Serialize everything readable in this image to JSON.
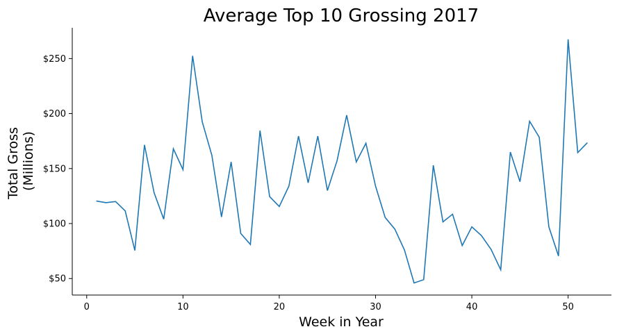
{
  "chart_data": {
    "type": "line",
    "title": "Average Top 10 Grossing 2017",
    "xlabel": "Week in Year",
    "ylabel_lines": [
      "Total Gross",
      "(Millions)"
    ],
    "xlim": [
      -1.5,
      54.5
    ],
    "ylim": [
      35,
      278
    ],
    "xticks": [
      0,
      10,
      20,
      30,
      40,
      50
    ],
    "xtick_labels": [
      "0",
      "10",
      "20",
      "30",
      "40",
      "50"
    ],
    "yticks": [
      50,
      100,
      150,
      200,
      250
    ],
    "ytick_labels": [
      "$50",
      "$100",
      "$150",
      "$200",
      "$250"
    ],
    "grid": false,
    "line_color": "#1f77b4",
    "series": [
      {
        "x": [
          1,
          2,
          3,
          4,
          5,
          6,
          7,
          8,
          9,
          10,
          11,
          12,
          13,
          14,
          15,
          16,
          17,
          18,
          19,
          20,
          21,
          22,
          23,
          24,
          25,
          26,
          27,
          28,
          29,
          30,
          31,
          32,
          33,
          34,
          35,
          36,
          37,
          38,
          39,
          40,
          41,
          42,
          43,
          44,
          45,
          46,
          47,
          48,
          49,
          50,
          51,
          52
        ],
        "values": [
          120.5,
          119,
          120,
          111.5,
          75.5,
          171.5,
          128,
          104,
          168,
          149,
          252.5,
          192.5,
          162,
          106,
          156,
          91,
          81,
          184.5,
          124.5,
          115.5,
          134,
          179.5,
          137,
          179.5,
          130,
          157,
          198.5,
          156,
          173,
          134,
          105.5,
          95,
          76,
          46,
          49,
          153,
          101.5,
          108.5,
          80,
          97,
          89,
          76.5,
          58,
          165,
          138,
          193,
          178.5,
          97,
          70.5,
          267.5,
          164.5,
          173.5
        ]
      }
    ]
  }
}
